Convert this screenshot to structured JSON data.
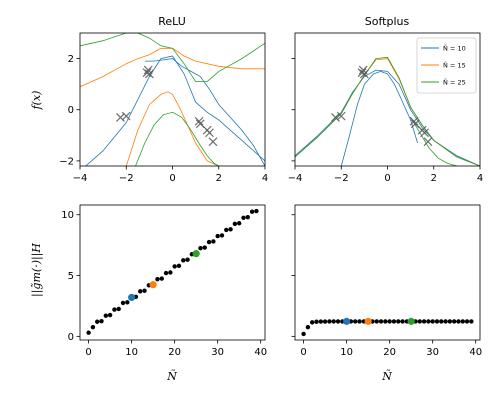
{
  "chart_data": [
    {
      "id": "relu",
      "type": "line",
      "title": "ReLU",
      "xlabel": "",
      "ylabel": "f(x)",
      "xlim": [
        -4,
        4
      ],
      "ylim": [
        -2.2,
        3.0
      ],
      "xticks": [
        -4,
        -2,
        0,
        2,
        4
      ],
      "yticks": [
        -2,
        0,
        2
      ],
      "colors": {
        "N10": "#1f77b4",
        "N15": "#ff7f0e",
        "N25": "#2ca02c",
        "data": "#555555"
      },
      "series": [
        {
          "key": "N10",
          "x": [
            -4.0,
            -3.0,
            -2.0,
            -1.0,
            -0.5,
            0.0,
            0.5,
            1.0,
            1.5,
            2.0,
            3.0,
            4.0
          ],
          "y": [
            -2.4,
            -1.6,
            -0.5,
            1.3,
            2.0,
            2.1,
            1.4,
            0.3,
            -0.1,
            -0.4,
            -1.2,
            -2.0
          ]
        },
        {
          "key": "N10",
          "x": [
            -1.2,
            -0.8,
            -0.4,
            0.0,
            0.4,
            0.8,
            1.2,
            1.6,
            2.0,
            2.5,
            3.0,
            3.5,
            4.0
          ],
          "y": [
            1.9,
            1.9,
            1.95,
            2.0,
            1.7,
            1.5,
            1.3,
            0.8,
            0.2,
            -0.3,
            -0.8,
            -1.4,
            -2.2
          ]
        },
        {
          "key": "N15",
          "x": [
            -4.0,
            -3.0,
            -2.0,
            -1.5,
            -1.0,
            -0.5,
            0.0,
            0.5,
            1.0,
            2.0,
            3.0,
            4.0
          ],
          "y": [
            0.9,
            1.3,
            1.8,
            2.0,
            2.15,
            2.4,
            2.4,
            2.1,
            1.9,
            1.7,
            1.6,
            1.6
          ]
        },
        {
          "key": "N15",
          "x": [
            -2.0,
            -1.5,
            -1.0,
            -0.5,
            -0.2,
            0.0,
            0.3,
            0.7,
            1.0,
            1.5,
            2.0
          ],
          "y": [
            -2.2,
            -0.8,
            0.2,
            0.6,
            0.7,
            0.6,
            0.1,
            -0.7,
            -1.3,
            -2.0,
            -2.2
          ]
        },
        {
          "key": "N25",
          "x": [
            -4.0,
            -3.0,
            -2.5,
            -2.0,
            -1.5,
            -1.0,
            -0.5,
            0.0,
            0.5,
            1.0,
            1.5,
            2.0,
            3.0,
            4.0
          ],
          "y": [
            2.5,
            2.7,
            2.85,
            3.0,
            3.0,
            2.8,
            2.5,
            2.4,
            1.8,
            1.1,
            1.1,
            1.5,
            2.0,
            2.6
          ]
        },
        {
          "key": "N25",
          "x": [
            -1.6,
            -1.2,
            -0.8,
            -0.4,
            0.0,
            0.4,
            0.8,
            1.2,
            1.5,
            1.8,
            2.0
          ],
          "y": [
            -2.2,
            -1.3,
            -0.6,
            -0.2,
            -0.1,
            -0.3,
            -0.8,
            -1.4,
            -1.8,
            -2.1,
            -2.2
          ]
        }
      ],
      "points": {
        "x": [
          -2.25,
          -2.0,
          -1.1,
          -1.05,
          -1.0,
          1.15,
          1.2,
          1.5,
          1.6,
          1.75
        ],
        "y": [
          -0.3,
          -0.25,
          1.45,
          1.55,
          1.4,
          -0.45,
          -0.55,
          -0.8,
          -0.9,
          -1.25
        ]
      }
    },
    {
      "id": "softplus",
      "type": "line",
      "title": "Softplus",
      "xlabel": "",
      "ylabel": "",
      "xlim": [
        -4,
        4
      ],
      "ylim": [
        -2.2,
        3.0
      ],
      "xticks": [
        -4,
        -2,
        0,
        2,
        4
      ],
      "yticks": [
        -2,
        0,
        2
      ],
      "colors": {
        "N10": "#1f77b4",
        "N15": "#ff7f0e",
        "N25": "#2ca02c",
        "data": "#555555"
      },
      "legend": {
        "position": "top-right",
        "entries": [
          {
            "key": "N10",
            "label": "Ñ = 10"
          },
          {
            "key": "N15",
            "label": "Ñ = 15"
          },
          {
            "key": "N25",
            "label": "Ñ = 25"
          }
        ]
      },
      "series": [
        {
          "key": "N10",
          "x": [
            -4.0,
            -3.0,
            -2.0,
            -1.5,
            -1.0,
            -0.5,
            0.0,
            0.5,
            1.0,
            1.5,
            2.0,
            3.0,
            4.0
          ],
          "y": [
            -1.8,
            -1.0,
            -0.1,
            0.7,
            1.3,
            1.55,
            1.5,
            1.0,
            0.0,
            -0.7,
            -1.2,
            -1.8,
            -2.2
          ]
        },
        {
          "key": "N15",
          "x": [
            -4.0,
            -3.0,
            -2.0,
            -1.5,
            -1.0,
            -0.5,
            0.0,
            0.5,
            1.0,
            1.5,
            2.0,
            3.0,
            4.0
          ],
          "y": [
            -1.85,
            -1.05,
            -0.15,
            0.65,
            1.35,
            1.95,
            2.0,
            1.2,
            0.1,
            -0.6,
            -1.2,
            -1.85,
            -2.2
          ]
        },
        {
          "key": "N25",
          "x": [
            -4.0,
            -3.0,
            -2.0,
            -1.5,
            -1.0,
            -0.5,
            0.0,
            0.5,
            1.0,
            1.5,
            2.0,
            3.0,
            4.0
          ],
          "y": [
            -1.85,
            -1.05,
            -0.15,
            0.65,
            1.35,
            2.0,
            2.05,
            1.25,
            0.1,
            -0.6,
            -1.2,
            -1.85,
            -2.2
          ]
        },
        {
          "key": "N10",
          "x": [
            -2.0,
            -1.7,
            -1.3,
            -1.0,
            -0.6,
            -0.3,
            0.0,
            0.3,
            0.6,
            1.0,
            1.3
          ],
          "y": [
            -2.2,
            -1.2,
            0.2,
            1.0,
            1.4,
            1.5,
            1.4,
            1.0,
            0.4,
            -0.4,
            -1.3
          ]
        },
        {
          "key": "N25",
          "x": [
            1.0,
            1.4,
            1.8,
            2.2,
            2.6,
            3.0
          ],
          "y": [
            -0.3,
            -0.9,
            -1.5,
            -1.9,
            -2.1,
            -2.2
          ]
        }
      ],
      "points": {
        "x": [
          -2.25,
          -2.0,
          -1.1,
          -1.05,
          -1.0,
          1.15,
          1.2,
          1.5,
          1.6,
          1.75
        ],
        "y": [
          -0.3,
          -0.25,
          1.45,
          1.55,
          1.4,
          -0.45,
          -0.55,
          -0.8,
          -0.9,
          -1.25
        ]
      }
    },
    {
      "id": "relu-norm",
      "type": "scatter",
      "title": "",
      "xlabel": "Ñ",
      "ylabel": "||g̃m(·)||H",
      "xlim": [
        -2,
        41
      ],
      "ylim": [
        -0.3,
        10.8
      ],
      "xticks": [
        0,
        10,
        20,
        30,
        40
      ],
      "yticks": [
        0,
        5,
        10
      ],
      "x": [
        0,
        1,
        2,
        3,
        4,
        5,
        6,
        7,
        8,
        9,
        10,
        11,
        12,
        13,
        14,
        15,
        16,
        17,
        18,
        19,
        20,
        21,
        22,
        23,
        24,
        25,
        26,
        27,
        28,
        29,
        30,
        31,
        32,
        33,
        34,
        35,
        36,
        37,
        38,
        39
      ],
      "y": [
        0.3,
        0.75,
        1.2,
        1.25,
        1.7,
        1.75,
        2.2,
        2.25,
        2.75,
        2.8,
        3.2,
        3.25,
        3.7,
        3.75,
        4.2,
        4.25,
        4.7,
        4.75,
        5.2,
        5.25,
        5.75,
        5.8,
        6.25,
        6.3,
        6.75,
        6.8,
        7.25,
        7.3,
        7.75,
        7.8,
        8.25,
        8.3,
        8.75,
        8.8,
        9.25,
        9.3,
        9.75,
        9.8,
        10.25,
        10.3
      ],
      "highlights": [
        {
          "x": 10,
          "y": 3.2,
          "key": "N10"
        },
        {
          "x": 15,
          "y": 4.25,
          "key": "N15"
        },
        {
          "x": 25,
          "y": 6.8,
          "key": "N25"
        }
      ],
      "colors": {
        "points": "#000000",
        "N10": "#1f77b4",
        "N15": "#ff7f0e",
        "N25": "#2ca02c"
      }
    },
    {
      "id": "softplus-norm",
      "type": "scatter",
      "title": "",
      "xlabel": "Ñ",
      "ylabel": "",
      "xlim": [
        -2,
        41
      ],
      "ylim": [
        -0.3,
        10.8
      ],
      "xticks": [
        0,
        10,
        20,
        30,
        40
      ],
      "yticks": [
        0,
        5,
        10
      ],
      "x": [
        0,
        1,
        2,
        3,
        4,
        5,
        6,
        7,
        8,
        9,
        10,
        11,
        12,
        13,
        14,
        15,
        16,
        17,
        18,
        19,
        20,
        21,
        22,
        23,
        24,
        25,
        26,
        27,
        28,
        29,
        30,
        31,
        32,
        33,
        34,
        35,
        36,
        37,
        38,
        39
      ],
      "y": [
        0.2,
        0.75,
        1.15,
        1.2,
        1.22,
        1.22,
        1.23,
        1.23,
        1.23,
        1.23,
        1.23,
        1.23,
        1.23,
        1.23,
        1.23,
        1.23,
        1.23,
        1.23,
        1.23,
        1.23,
        1.23,
        1.23,
        1.23,
        1.23,
        1.23,
        1.23,
        1.23,
        1.23,
        1.23,
        1.23,
        1.23,
        1.23,
        1.23,
        1.23,
        1.23,
        1.23,
        1.23,
        1.23,
        1.23,
        1.23
      ],
      "highlights": [
        {
          "x": 10,
          "y": 1.23,
          "key": "N10"
        },
        {
          "x": 15,
          "y": 1.23,
          "key": "N15"
        },
        {
          "x": 25,
          "y": 1.23,
          "key": "N25"
        }
      ],
      "colors": {
        "points": "#000000",
        "N10": "#1f77b4",
        "N15": "#ff7f0e",
        "N25": "#2ca02c"
      }
    }
  ]
}
